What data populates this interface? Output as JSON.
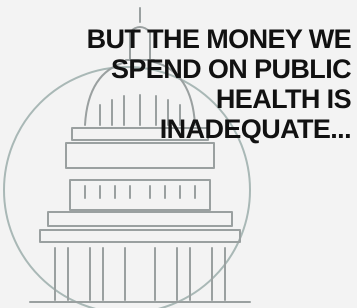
{
  "headline": {
    "lines": [
      "BUT THE MONEY WE",
      "SPEND ON PUBLIC",
      "HEALTH IS",
      "INADEQUATE..."
    ]
  }
}
